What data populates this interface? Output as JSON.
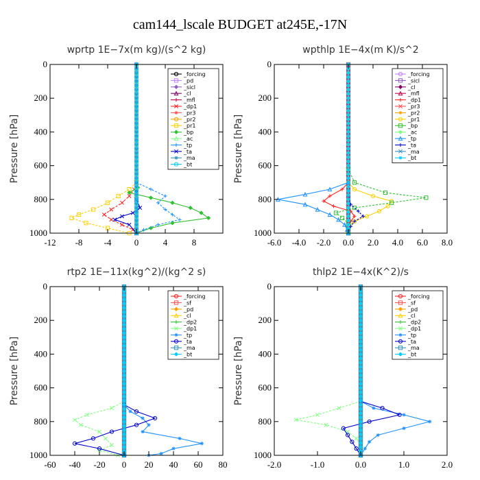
{
  "figure_title": "cam144_lscale  BUDGET at245E,-17N",
  "chart_data": [
    {
      "type": "line",
      "title": "wprtp  1E−7x(m kg)/(s^2 kg)",
      "ylabel": "Pressure [hPa]",
      "xlim": [
        -12,
        12
      ],
      "ylim": [
        1000,
        0
      ],
      "x_ticks": [
        -12,
        -8,
        -4,
        0,
        4,
        8
      ],
      "x_tick_labels": [
        "-12",
        "-8",
        "-4",
        "0",
        "4",
        "8"
      ],
      "y_ticks": [
        0,
        200,
        400,
        600,
        800,
        1000
      ],
      "y_tick_labels": [
        "0",
        "200",
        "400",
        "600",
        "800",
        "1000"
      ],
      "legend": "top-right",
      "series": [
        {
          "name": "_forcing",
          "color": "#000000",
          "y": [
            0,
            1000
          ],
          "x": [
            0,
            0
          ]
        },
        {
          "name": "_pd",
          "color": "#c080ff",
          "y": [
            0,
            1000
          ],
          "x": [
            0,
            0
          ]
        },
        {
          "name": "_sicl",
          "color": "#9060c0",
          "y": [
            0,
            1000
          ],
          "x": [
            0,
            0
          ]
        },
        {
          "name": "_cl",
          "color": "#800060",
          "y": [
            0,
            1000
          ],
          "x": [
            0,
            0
          ]
        },
        {
          "name": "_mfl",
          "color": "#c00040",
          "y": [
            0,
            1000
          ],
          "x": [
            0,
            0
          ]
        },
        {
          "name": "_dp1",
          "color": "#ff2020",
          "y": [
            700,
            740,
            780,
            820,
            860,
            890,
            920,
            950,
            980,
            1000
          ],
          "x": [
            0,
            -0.3,
            -1,
            -2,
            -3.5,
            -4.5,
            -3.5,
            -2,
            -0.5,
            0
          ]
        },
        {
          "name": "_pr3",
          "color": "#ff5050",
          "y": [
            0,
            1000
          ],
          "x": [
            0,
            0
          ]
        },
        {
          "name": "_pr2",
          "color": "#ffa000",
          "y": [
            0,
            1000
          ],
          "x": [
            0,
            0
          ]
        },
        {
          "name": "_pr1",
          "color": "#ffd000",
          "y": [
            700,
            740,
            780,
            820,
            860,
            890,
            910,
            940,
            970,
            1000
          ],
          "x": [
            0,
            -1,
            -2.5,
            -4,
            -6,
            -8,
            -9,
            -7,
            -4,
            -1
          ]
        },
        {
          "name": "_bp",
          "color": "#30c030",
          "y": [
            700,
            730,
            760,
            790,
            820,
            850,
            880,
            910,
            940,
            970,
            1000
          ],
          "x": [
            0,
            0.2,
            -1,
            2,
            5,
            7.5,
            9,
            10,
            5,
            2,
            0
          ]
        },
        {
          "name": "_ac",
          "color": "#80ff80",
          "y": [
            0,
            1000
          ],
          "x": [
            0,
            0
          ]
        },
        {
          "name": "_tp",
          "color": "#1e90ff",
          "y": [
            700,
            740,
            780,
            820,
            860,
            890,
            920,
            950,
            980,
            1000
          ],
          "x": [
            0,
            2,
            4,
            3,
            4,
            5,
            6,
            3,
            1,
            0
          ]
        },
        {
          "name": "_ta",
          "color": "#0000cc",
          "y": [
            700,
            760,
            800,
            850,
            880,
            900,
            920,
            950,
            1000
          ],
          "x": [
            0,
            0,
            0,
            0.5,
            -0.5,
            -2,
            -3,
            -1,
            0
          ]
        },
        {
          "name": "_ma",
          "color": "#3090c0",
          "y": [
            0,
            1000
          ],
          "x": [
            0,
            0
          ]
        },
        {
          "name": "_bt",
          "color": "#00ccff",
          "y": [
            0,
            1000
          ],
          "x": [
            0,
            0
          ]
        }
      ]
    },
    {
      "type": "line",
      "title": "wpthlp  1E−4x(m K)/s^2",
      "ylabel": "Pressure [hPa]",
      "xlim": [
        -6,
        8
      ],
      "ylim": [
        1000,
        0
      ],
      "x_ticks": [
        -6,
        -4,
        -2,
        0,
        2,
        4,
        6,
        8
      ],
      "x_tick_labels": [
        "-6.0",
        "-4.0",
        "-2.0",
        "0.0",
        "2.0",
        "4.0",
        "6.0",
        "8.0"
      ],
      "y_ticks": [
        0,
        200,
        400,
        600,
        800,
        1000
      ],
      "y_tick_labels": [
        "0",
        "200",
        "400",
        "600",
        "800",
        "1000"
      ],
      "legend": "top-right",
      "series": [
        {
          "name": "_forcing",
          "color": "#c080ff",
          "y": [
            0,
            1000
          ],
          "x": [
            0,
            0
          ]
        },
        {
          "name": "_sicl",
          "color": "#9060c0",
          "y": [
            0,
            1000
          ],
          "x": [
            0,
            0
          ]
        },
        {
          "name": "_cl",
          "color": "#800060",
          "y": [
            0,
            1000
          ],
          "x": [
            0,
            0
          ]
        },
        {
          "name": "_mfl",
          "color": "#c00040",
          "y": [
            0,
            1000
          ],
          "x": [
            0,
            0
          ]
        },
        {
          "name": "_dp1",
          "color": "#ff2020",
          "y": [
            700,
            740,
            780,
            810,
            840,
            870,
            900,
            930,
            960,
            1000
          ],
          "x": [
            0,
            -0.5,
            -1.5,
            -2,
            -1.2,
            0.2,
            0.5,
            0.2,
            0,
            0
          ]
        },
        {
          "name": "_pr3",
          "color": "#ff5050",
          "y": [
            0,
            1000
          ],
          "x": [
            0,
            0
          ]
        },
        {
          "name": "_pr2",
          "color": "#ffa000",
          "y": [
            0,
            1000
          ],
          "x": [
            0,
            0
          ]
        },
        {
          "name": "_pr1",
          "color": "#ffd000",
          "y": [
            700,
            740,
            780,
            810,
            840,
            870,
            900,
            930,
            960,
            1000
          ],
          "x": [
            0,
            0.5,
            2,
            3.5,
            3.2,
            2.5,
            1.5,
            0.5,
            0,
            0
          ]
        },
        {
          "name": "_bp",
          "color": "#30c030",
          "y": [
            620,
            700,
            760,
            790,
            820,
            850,
            880,
            910,
            940,
            970,
            1000
          ],
          "x": [
            0,
            0.5,
            3,
            6.3,
            3.5,
            0.5,
            -1,
            -0.5,
            0,
            0,
            0
          ]
        },
        {
          "name": "_ac",
          "color": "#80ff80",
          "y": [
            0,
            1000
          ],
          "x": [
            0,
            0
          ]
        },
        {
          "name": "_tp",
          "color": "#1e90ff",
          "y": [
            700,
            740,
            770,
            800,
            830,
            860,
            890,
            920,
            950,
            980,
            1000
          ],
          "x": [
            0,
            -1.5,
            -3.5,
            -5.7,
            -3.5,
            -2.5,
            -1.5,
            -0.8,
            -0.3,
            -0.1,
            0
          ]
        },
        {
          "name": "_ta",
          "color": "#0000cc",
          "y": [
            700,
            780,
            830,
            870,
            900,
            930,
            960,
            1000
          ],
          "x": [
            0,
            0,
            0.2,
            0.8,
            1.2,
            0.5,
            0.2,
            0
          ]
        },
        {
          "name": "_ma",
          "color": "#3090c0",
          "y": [
            0,
            1000
          ],
          "x": [
            0,
            0
          ]
        },
        {
          "name": "_bt",
          "color": "#00ccff",
          "y": [
            0,
            1000
          ],
          "x": [
            0,
            0
          ]
        }
      ]
    },
    {
      "type": "line",
      "title": "rtp2  1E−11x(kg^2)/(kg^2 s)",
      "ylabel": "Pressure [hPa]",
      "xlim": [
        -60,
        80
      ],
      "ylim": [
        1000,
        0
      ],
      "x_ticks": [
        -60,
        -40,
        -20,
        0,
        20,
        40,
        60,
        80
      ],
      "x_tick_labels": [
        "-60",
        "-40",
        "-20",
        "0",
        "20",
        "40",
        "60",
        "80"
      ],
      "y_ticks": [
        0,
        200,
        400,
        600,
        800,
        1000
      ],
      "y_tick_labels": [
        "0",
        "200",
        "400",
        "600",
        "800",
        "1000"
      ],
      "legend": "top-right",
      "series": [
        {
          "name": "_forcing",
          "color": "#ff2020",
          "y": [
            0,
            1000
          ],
          "x": [
            0,
            0
          ]
        },
        {
          "name": "_sf",
          "color": "#ff5050",
          "y": [
            0,
            1000
          ],
          "x": [
            0,
            0
          ]
        },
        {
          "name": "_pd",
          "color": "#ffa000",
          "y": [
            0,
            1000
          ],
          "x": [
            0,
            0
          ]
        },
        {
          "name": "_cl",
          "color": "#ffd000",
          "y": [
            0,
            1000
          ],
          "x": [
            0,
            0
          ]
        },
        {
          "name": "_dp2",
          "color": "#30c030",
          "y": [
            0,
            1000
          ],
          "x": [
            0,
            0
          ]
        },
        {
          "name": "_dp1",
          "color": "#80ff80",
          "y": [
            680,
            720,
            760,
            790,
            820,
            860,
            900,
            940,
            970,
            1000
          ],
          "x": [
            0,
            -10,
            -30,
            -40,
            -35,
            -20,
            -15,
            -10,
            -20,
            -5
          ]
        },
        {
          "name": "_tp",
          "color": "#1e90ff",
          "y": [
            700,
            740,
            780,
            820,
            860,
            900,
            930,
            960,
            990,
            1000
          ],
          "x": [
            0,
            5,
            15,
            20,
            15,
            45,
            63,
            40,
            30,
            20
          ]
        },
        {
          "name": "_ta",
          "color": "#0000cc",
          "y": [
            700,
            740,
            780,
            820,
            860,
            900,
            930,
            960,
            1000
          ],
          "x": [
            0,
            10,
            25,
            10,
            -10,
            -25,
            -40,
            -20,
            0
          ]
        },
        {
          "name": "_ma",
          "color": "#3090c0",
          "y": [
            0,
            1000
          ],
          "x": [
            0,
            0
          ]
        },
        {
          "name": "_bt",
          "color": "#00ccff",
          "y": [
            0,
            1000
          ],
          "x": [
            0,
            0
          ]
        }
      ]
    },
    {
      "type": "line",
      "title": "thlp2  1E−4x(K^2)/s",
      "ylabel": "Pressure [hPa]",
      "xlim": [
        -2,
        2
      ],
      "ylim": [
        1000,
        0
      ],
      "x_ticks": [
        -2,
        -1,
        0,
        1,
        2
      ],
      "x_tick_labels": [
        "-2.0",
        "-1.0",
        "0.0",
        "1.0",
        "2.0"
      ],
      "y_ticks": [
        0,
        200,
        400,
        600,
        800,
        1000
      ],
      "y_tick_labels": [
        "0",
        "200",
        "400",
        "600",
        "800",
        "1000"
      ],
      "legend": "top-right",
      "series": [
        {
          "name": "_forcing",
          "color": "#ff2020",
          "y": [
            0,
            1000
          ],
          "x": [
            0,
            0
          ]
        },
        {
          "name": "_sf",
          "color": "#ff5050",
          "y": [
            0,
            1000
          ],
          "x": [
            0,
            0
          ]
        },
        {
          "name": "_pd",
          "color": "#ffa000",
          "y": [
            0,
            1000
          ],
          "x": [
            0,
            0
          ]
        },
        {
          "name": "_cl",
          "color": "#ffd000",
          "y": [
            0,
            1000
          ],
          "x": [
            0,
            0
          ]
        },
        {
          "name": "_dp2",
          "color": "#30c030",
          "y": [
            0,
            1000
          ],
          "x": [
            0,
            0
          ]
        },
        {
          "name": "_dp1",
          "color": "#80ff80",
          "y": [
            680,
            720,
            760,
            790,
            820,
            860,
            900,
            940,
            980,
            1000
          ],
          "x": [
            0,
            -0.5,
            -1.0,
            -1.5,
            -0.8,
            -0.3,
            -0.1,
            0,
            0,
            0
          ]
        },
        {
          "name": "_tp",
          "color": "#1e90ff",
          "y": [
            680,
            720,
            760,
            800,
            840,
            880,
            920,
            960,
            1000
          ],
          "x": [
            0,
            0.3,
            1.0,
            1.6,
            1.0,
            0.4,
            0.2,
            0.1,
            0
          ]
        },
        {
          "name": "_ta",
          "color": "#0000cc",
          "y": [
            680,
            720,
            760,
            800,
            840,
            880,
            920,
            960,
            1000
          ],
          "x": [
            0,
            0.5,
            0.9,
            0.2,
            -0.4,
            -0.3,
            -0.2,
            -0.1,
            0
          ]
        },
        {
          "name": "_ma",
          "color": "#3090c0",
          "y": [
            0,
            1000
          ],
          "x": [
            0,
            0
          ]
        },
        {
          "name": "_bt",
          "color": "#00ccff",
          "y": [
            0,
            1000
          ],
          "x": [
            0,
            0
          ]
        }
      ]
    }
  ]
}
